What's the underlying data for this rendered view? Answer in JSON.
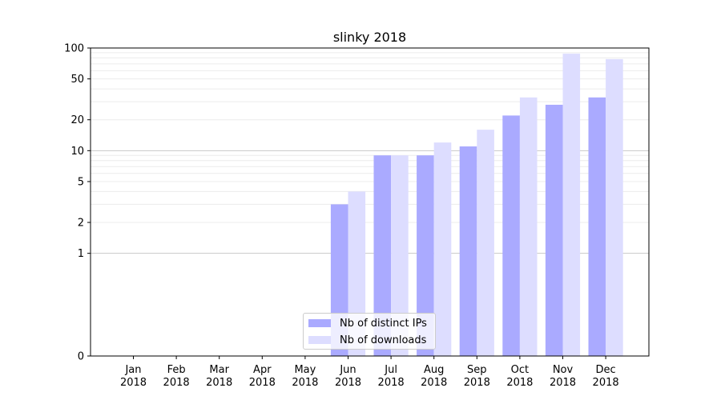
{
  "chart_data": {
    "type": "bar",
    "title": "slinky 2018",
    "xlabel": "",
    "ylabel": "",
    "yscale": "symlog",
    "ylim": [
      0,
      100
    ],
    "yticks": [
      {
        "value": 0,
        "label": "0"
      },
      {
        "value": 1,
        "label": "1"
      },
      {
        "value": 2,
        "label": "2"
      },
      {
        "value": 5,
        "label": "5"
      },
      {
        "value": 10,
        "label": "10"
      },
      {
        "value": 20,
        "label": "20"
      },
      {
        "value": 50,
        "label": "50"
      },
      {
        "value": 100,
        "label": "100"
      }
    ],
    "categories": [
      "Jan\n2018",
      "Feb\n2018",
      "Mar\n2018",
      "Apr\n2018",
      "May\n2018",
      "Jun\n2018",
      "Jul\n2018",
      "Aug\n2018",
      "Sep\n2018",
      "Oct\n2018",
      "Nov\n2018",
      "Dec\n2018"
    ],
    "series": [
      {
        "name": "Nb of distinct IPs",
        "color": "#aaaaff",
        "values": [
          0,
          0,
          0,
          0,
          0,
          3,
          9,
          9,
          11,
          22,
          28,
          33
        ]
      },
      {
        "name": "Nb of downloads",
        "color": "#ddddff",
        "values": [
          0,
          0,
          0,
          0,
          0,
          4,
          9,
          12,
          16,
          33,
          88,
          78
        ]
      }
    ],
    "grid": true,
    "legend_position": "lower center"
  }
}
